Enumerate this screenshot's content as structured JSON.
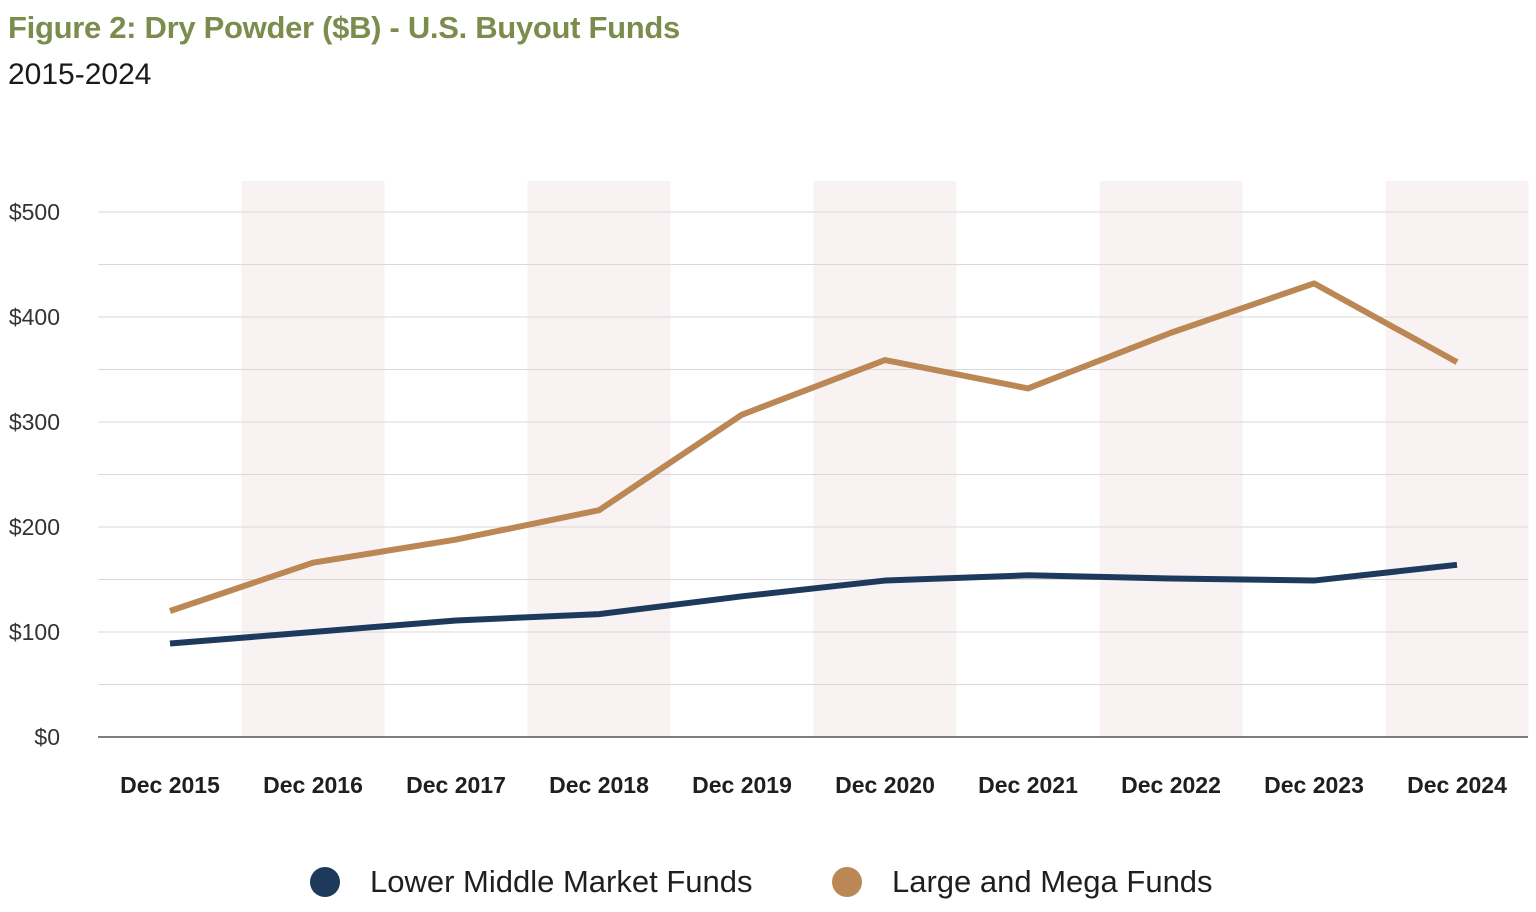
{
  "header": {
    "title": "Figure 2: Dry Powder ($B) - U.S. Buyout Funds",
    "subtitle": "2015-2024"
  },
  "colors": {
    "title": "#7b8c4d",
    "lower_middle_market": "#1d3a5c",
    "large_and_mega": "#bb8755",
    "band": "#f8f3f2",
    "grid": "#d9d9d9",
    "axis": "#555555"
  },
  "chart_data": {
    "type": "line",
    "title": "Figure 2: Dry Powder ($B) - U.S. Buyout Funds",
    "subtitle": "2015-2024",
    "xlabel": "",
    "ylabel": "",
    "categories": [
      "Dec 2015",
      "Dec 2016",
      "Dec 2017",
      "Dec 2018",
      "Dec 2019",
      "Dec 2020",
      "Dec 2021",
      "Dec 2022",
      "Dec 2023",
      "Dec 2024"
    ],
    "y_ticks": [
      0,
      100,
      200,
      300,
      400,
      500
    ],
    "y_tick_labels": [
      "$0",
      "$100",
      "$200",
      "$300",
      "$400",
      "$500"
    ],
    "ylim": [
      0,
      500
    ],
    "grid": true,
    "legend_position": "bottom",
    "series": [
      {
        "name": "Lower Middle Market Funds",
        "color": "#1d3a5c",
        "values": [
          89,
          100,
          111,
          117,
          134,
          149,
          154,
          151,
          149,
          164
        ]
      },
      {
        "name": "Large and Mega Funds",
        "color": "#bb8755",
        "values": [
          120,
          166,
          188,
          216,
          307,
          359,
          332,
          385,
          432,
          357
        ]
      }
    ]
  }
}
